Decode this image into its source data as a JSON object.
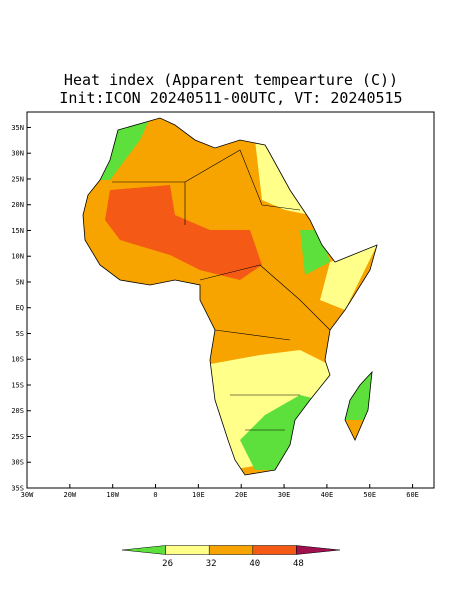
{
  "map": {
    "title": "Heat index (Apparent tempearture (C))",
    "subtitle": "Init:ICON 20240511-00UTC, VT: 20240515",
    "lonlim": [
      -30,
      65
    ],
    "latlim": [
      -35,
      38
    ],
    "lon_ticks": [
      {
        "value": -30,
        "label": "30W"
      },
      {
        "value": -20,
        "label": "20W"
      },
      {
        "value": -10,
        "label": "10W"
      },
      0,
      {
        "value": 10,
        "label": "10E"
      },
      {
        "value": 20,
        "label": "20E"
      },
      {
        "value": 30,
        "label": "30E"
      },
      {
        "value": 40,
        "label": "40E"
      },
      {
        "value": 50,
        "label": "50E"
      },
      {
        "value": 60,
        "label": "60E"
      }
    ],
    "lat_ticks": [
      {
        "value": 35,
        "label": "35N"
      },
      {
        "value": 30,
        "label": "30N"
      },
      {
        "value": 25,
        "label": "25N"
      },
      {
        "value": 20,
        "label": "20N"
      },
      {
        "value": 15,
        "label": "15N"
      },
      {
        "value": 10,
        "label": "10N"
      },
      {
        "value": 5,
        "label": "5N"
      },
      {
        "value": 0,
        "label": "EQ"
      },
      {
        "value": -5,
        "label": "5S"
      },
      {
        "value": -10,
        "label": "10S"
      },
      {
        "value": -15,
        "label": "15S"
      },
      {
        "value": -20,
        "label": "20S"
      },
      {
        "value": -25,
        "label": "25S"
      },
      {
        "value": -30,
        "label": "30S"
      },
      {
        "value": -35,
        "label": "35S"
      }
    ],
    "colorbar": {
      "levels": [
        26,
        32,
        40,
        48
      ],
      "colors": [
        "#5ee03c",
        "#ffff8a",
        "#f7a400",
        "#f45a16",
        "#a0104e"
      ]
    }
  }
}
